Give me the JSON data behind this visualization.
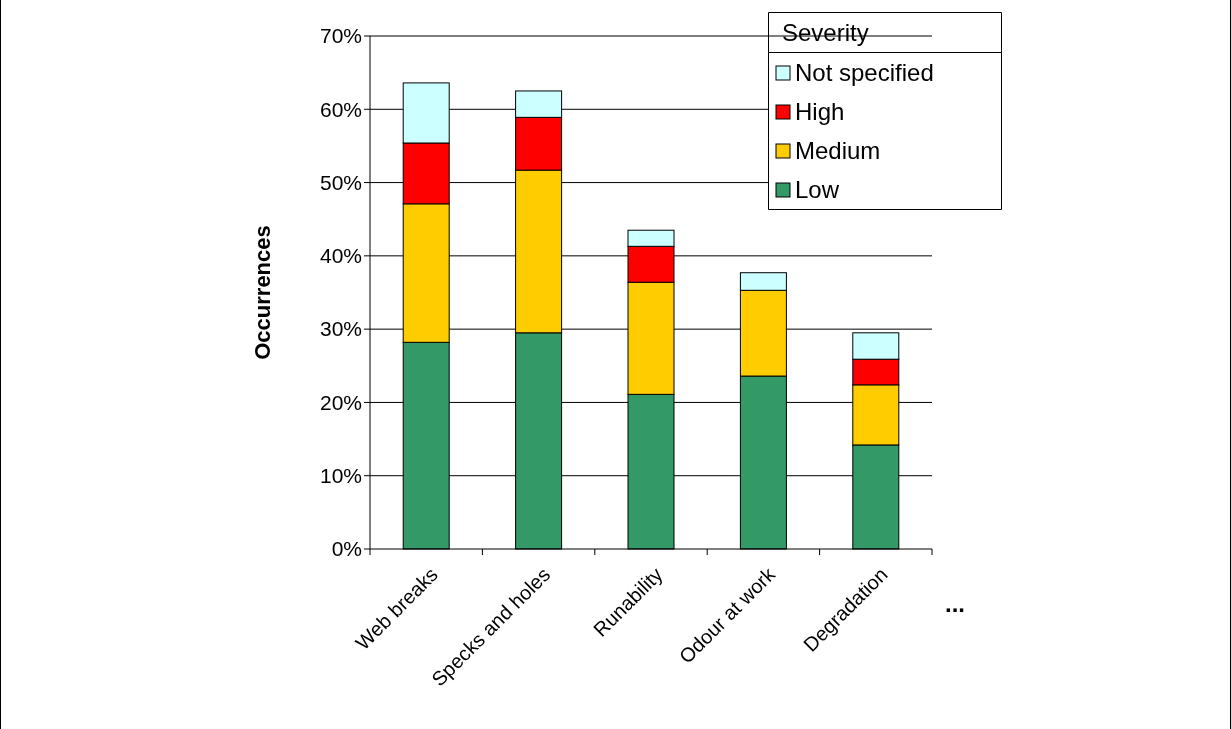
{
  "chart_data": {
    "type": "bar",
    "stacked": true,
    "ylabel": "Occurrences",
    "legend_title": "Severity",
    "legend": "top right",
    "grid": "y",
    "categories": [
      "Web breaks",
      "Specks and holes",
      "Runability",
      "Odour at work",
      "Degradation"
    ],
    "series": [
      {
        "name": "Low",
        "color": "#339966",
        "values": [
          28.2,
          29.5,
          21.1,
          23.6,
          14.2
        ]
      },
      {
        "name": "Medium",
        "color": "#ffcc00",
        "values": [
          18.9,
          22.2,
          15.3,
          11.7,
          8.2
        ]
      },
      {
        "name": "High",
        "color": "#ff0000",
        "values": [
          8.3,
          7.2,
          4.9,
          0,
          3.5
        ]
      },
      {
        "name": "Not specified",
        "color": "#ccffff",
        "values": [
          8.2,
          3.6,
          2.2,
          2.4,
          3.6
        ]
      }
    ],
    "ylim": [
      0,
      70
    ],
    "yticks": [
      {
        "value": 0,
        "label": "0%"
      },
      {
        "value": 10,
        "label": "10%"
      },
      {
        "value": 20,
        "label": "20%"
      },
      {
        "value": 30,
        "label": "30%"
      },
      {
        "value": 40,
        "label": "40%"
      },
      {
        "value": 50,
        "label": "50%"
      },
      {
        "value": 60,
        "label": "60%"
      },
      {
        "value": 70,
        "label": "70%"
      }
    ],
    "annotations": [
      "..."
    ]
  }
}
